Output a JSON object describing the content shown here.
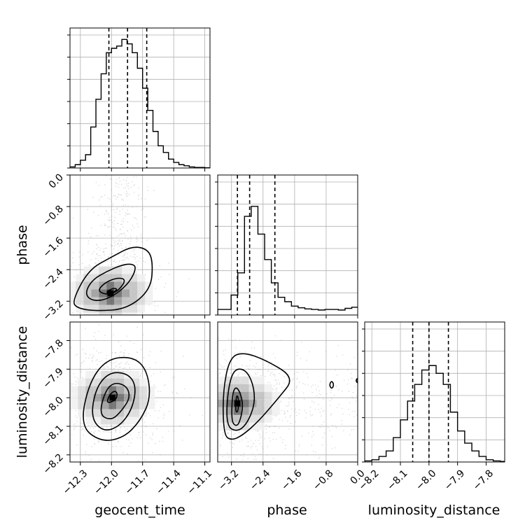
{
  "chart_data": {
    "type": "corner",
    "parameters": [
      "geocent_time",
      "phase",
      "luminosity_distance"
    ],
    "grid": true,
    "ranges": {
      "geocent_time": [
        -12.4,
        -11.05
      ],
      "phase": [
        -3.55,
        0.0
      ],
      "luminosity_distance": [
        -8.225,
        -7.735
      ]
    },
    "ticks": {
      "geocent_time": {
        "values": [
          -12.3,
          -12.0,
          -11.7,
          -11.4,
          -11.1
        ],
        "labels": [
          "−12.3",
          "−12.0",
          "−11.7",
          "−11.4",
          "−11.1"
        ]
      },
      "phase": {
        "values": [
          -3.2,
          -2.4,
          -1.6,
          -0.8,
          0.0
        ],
        "labels": [
          "−3.2",
          "−2.4",
          "−1.6",
          "−0.8",
          "0.0"
        ]
      },
      "luminosity_distance": {
        "values": [
          -8.2,
          -8.1,
          -8.0,
          -7.9,
          -7.8
        ],
        "labels": [
          "−8.2",
          "−8.1",
          "−8.0",
          "−7.9",
          "−7.8"
        ]
      }
    },
    "diag_yticks": [
      0.0,
      0.2,
      0.4,
      0.6,
      0.8,
      1.0,
      1.2
    ],
    "histograms": {
      "geocent_time": {
        "bin_edges": [
          -12.4,
          -12.35,
          -12.3,
          -12.25,
          -12.2,
          -12.15,
          -12.1,
          -12.05,
          -12.0,
          -11.95,
          -11.9,
          -11.85,
          -11.8,
          -11.75,
          -11.7,
          -11.65,
          -11.6,
          -11.55,
          -11.5,
          -11.45,
          -11.4,
          -11.35,
          -11.3,
          -11.25,
          -11.2,
          -11.15,
          -11.1,
          -11.05
        ],
        "counts": [
          0.01,
          0.03,
          0.07,
          0.12,
          0.37,
          0.62,
          0.85,
          1.04,
          1.08,
          1.1,
          1.16,
          1.12,
          1.04,
          0.9,
          0.72,
          0.52,
          0.33,
          0.2,
          0.14,
          0.08,
          0.05,
          0.03,
          0.02,
          0.01,
          0.005,
          0.005,
          0.002
        ],
        "quantiles": [
          -12.025,
          -11.845,
          -11.66
        ]
      },
      "phase": {
        "bin_edges": [
          -3.55,
          -3.38,
          -3.21,
          -3.04,
          -2.87,
          -2.7,
          -2.53,
          -2.36,
          -2.19,
          -2.02,
          -1.85,
          -1.68,
          -1.51,
          -1.34,
          -1.17,
          -1.0,
          -0.83,
          -0.66,
          -0.49,
          -0.32,
          -0.15,
          0.0
        ],
        "counts": [
          0.05,
          0.05,
          0.18,
          0.38,
          0.89,
          0.98,
          0.73,
          0.5,
          0.29,
          0.16,
          0.12,
          0.08,
          0.065,
          0.055,
          0.05,
          0.045,
          0.05,
          0.05,
          0.045,
          0.06,
          0.07
        ],
        "quantiles": [
          -3.05,
          -2.74,
          -2.1
        ]
      },
      "luminosity_distance": {
        "bin_edges": [
          -8.225,
          -8.2,
          -8.175,
          -8.15,
          -8.125,
          -8.1,
          -8.075,
          -8.05,
          -8.025,
          -8.0,
          -7.975,
          -7.95,
          -7.925,
          -7.9,
          -7.875,
          -7.85,
          -7.825,
          -7.8,
          -7.775,
          -7.75,
          -7.735
        ],
        "counts": [
          0.01,
          0.02,
          0.05,
          0.1,
          0.22,
          0.38,
          0.55,
          0.7,
          0.83,
          0.87,
          0.8,
          0.7,
          0.45,
          0.28,
          0.17,
          0.1,
          0.05,
          0.02,
          0.01,
          0.005
        ],
        "quantiles": [
          -8.057,
          -8.0,
          -7.932
        ]
      }
    },
    "contours": {
      "phase_vs_geocent_time": {
        "mode": [
          -12.01,
          -3.0
        ],
        "levels": [
          [
            [
              -12.25,
              -2.95
            ],
            [
              -12.18,
              -2.65
            ],
            [
              -12.05,
              -2.45
            ],
            [
              -11.9,
              -2.28
            ],
            [
              -11.8,
              -2.25
            ],
            [
              -11.76,
              -2.35
            ],
            [
              -11.82,
              -2.7
            ],
            [
              -11.95,
              -3.02
            ],
            [
              -12.1,
              -3.2
            ],
            [
              -12.22,
              -3.15
            ]
          ],
          [
            [
              -12.14,
              -2.95
            ],
            [
              -12.06,
              -2.72
            ],
            [
              -11.94,
              -2.6
            ],
            [
              -11.86,
              -2.65
            ],
            [
              -11.92,
              -2.9
            ],
            [
              -12.02,
              -3.05
            ]
          ],
          [
            [
              -12.06,
              -2.98
            ],
            [
              -11.98,
              -2.86
            ],
            [
              -11.94,
              -2.9
            ],
            [
              -12.0,
              -3.01
            ]
          ],
          [
            [
              -12.38,
              -3.2
            ],
            [
              -12.22,
              -2.4
            ],
            [
              -12.0,
              -2.08
            ],
            [
              -11.8,
              -1.8
            ],
            [
              -11.65,
              -1.88
            ],
            [
              -11.6,
              -2.2
            ],
            [
              -11.62,
              -2.9
            ],
            [
              -11.85,
              -3.4
            ],
            [
              -12.15,
              -3.45
            ],
            [
              -12.33,
              -3.38
            ]
          ]
        ]
      },
      "luminosity_distance_vs_geocent_time": {
        "mode": [
          -11.99,
          -8.0
        ],
        "levels": [
          [
            [
              -12.12,
              -8.06
            ],
            [
              -12.06,
              -7.975
            ],
            [
              -11.97,
              -7.945
            ],
            [
              -11.85,
              -7.96
            ],
            [
              -11.82,
              -8.0
            ],
            [
              -11.9,
              -8.045
            ],
            [
              -12.0,
              -8.08
            ]
          ],
          [
            [
              -12.2,
              -8.07
            ],
            [
              -12.15,
              -7.965
            ],
            [
              -12.02,
              -7.91
            ],
            [
              -11.84,
              -7.915
            ],
            [
              -11.76,
              -7.96
            ],
            [
              -11.8,
              -8.04
            ],
            [
              -11.92,
              -8.1
            ],
            [
              -12.08,
              -8.12
            ]
          ],
          [
            [
              -12.3,
              -8.1
            ],
            [
              -12.22,
              -7.95
            ],
            [
              -12.05,
              -7.865
            ],
            [
              -11.8,
              -7.855
            ],
            [
              -11.66,
              -7.9
            ],
            [
              -11.62,
              -8.0
            ],
            [
              -11.72,
              -8.08
            ],
            [
              -11.88,
              -8.14
            ],
            [
              -12.1,
              -8.155
            ]
          ],
          [
            [
              -12.05,
              -8.02
            ],
            [
              -12.02,
              -7.99
            ],
            [
              -11.97,
              -7.975
            ],
            [
              -11.94,
              -7.985
            ],
            [
              -11.96,
              -8.01
            ]
          ]
        ]
      },
      "luminosity_distance_vs_phase": {
        "mode": [
          -3.05,
          -8.02
        ],
        "levels": [
          [
            [
              -3.2,
              -8.08
            ],
            [
              -3.18,
              -7.99
            ],
            [
              -3.1,
              -7.96
            ],
            [
              -2.98,
              -7.98
            ],
            [
              -2.9,
              -8.03
            ],
            [
              -3.0,
              -8.09
            ],
            [
              -3.1,
              -8.1
            ]
          ],
          [
            [
              -3.33,
              -8.1
            ],
            [
              -3.3,
              -7.98
            ],
            [
              -3.15,
              -7.9
            ],
            [
              -2.85,
              -7.9
            ],
            [
              -2.65,
              -7.95
            ],
            [
              -2.6,
              -8.02
            ],
            [
              -2.8,
              -8.09
            ],
            [
              -3.05,
              -8.12
            ]
          ],
          [
            [
              -3.4,
              -8.13
            ],
            [
              -3.42,
              -7.98
            ],
            [
              -3.25,
              -7.86
            ],
            [
              -2.9,
              -7.84
            ],
            [
              -2.3,
              -7.87
            ],
            [
              -1.6,
              -7.93
            ],
            [
              -2.0,
              -8.0
            ],
            [
              -2.5,
              -8.08
            ],
            [
              -2.9,
              -8.13
            ],
            [
              -3.2,
              -8.15
            ]
          ],
          [
            [
              -3.1,
              -8.05
            ],
            [
              -3.08,
              -7.99
            ],
            [
              -3.02,
              -8.0
            ],
            [
              -3.03,
              -8.05
            ]
          ],
          [
            [
              -0.72,
              -7.955
            ],
            [
              -0.66,
              -7.94
            ],
            [
              -0.6,
              -7.955
            ],
            [
              -0.66,
              -7.97
            ]
          ],
          [
            [
              -0.05,
              -7.94
            ],
            [
              0.0,
              -7.93
            ],
            [
              0.0,
              -7.95
            ]
          ]
        ]
      }
    }
  }
}
